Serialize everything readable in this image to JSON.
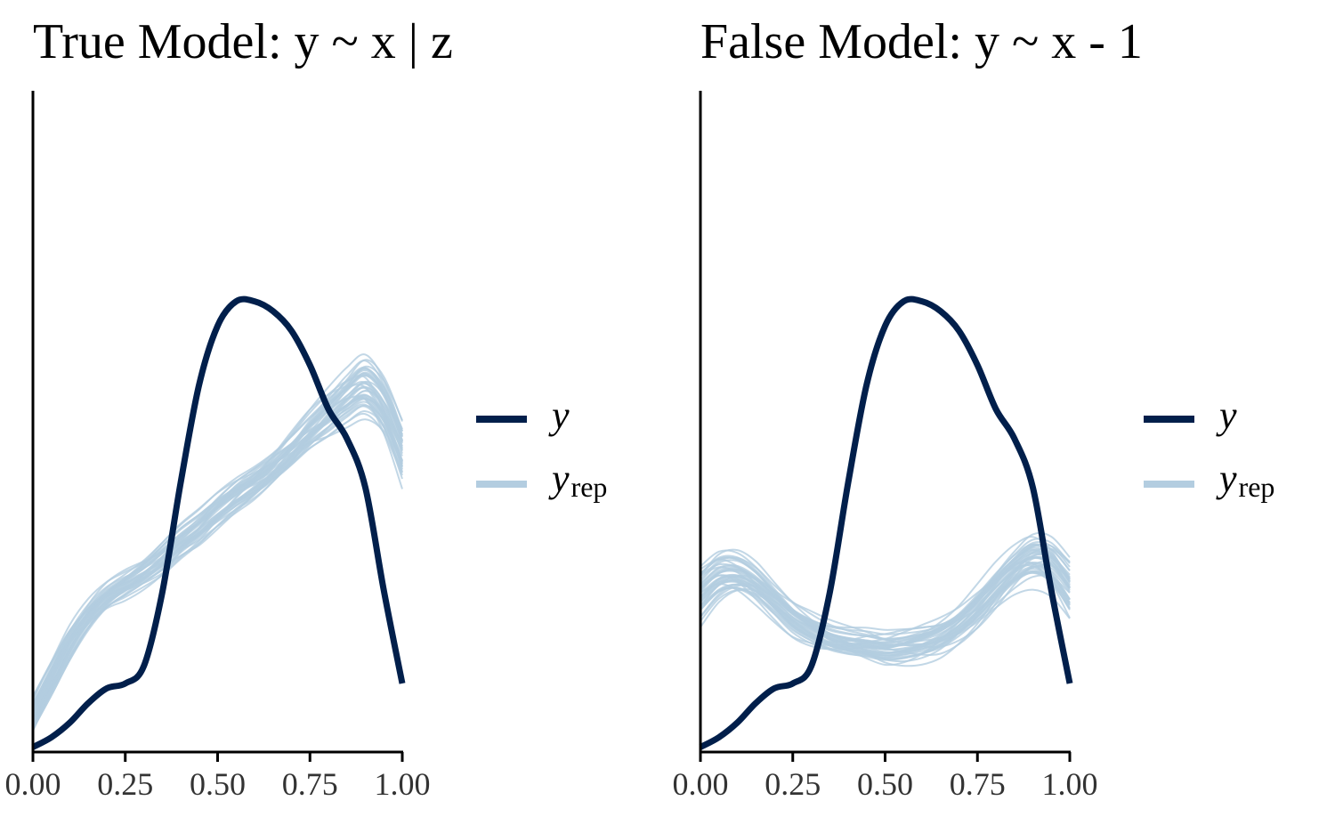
{
  "colors": {
    "y": "#011f4b",
    "yrep": "#b3cde0",
    "axis": "#000000",
    "tick_text": "#333333"
  },
  "legend": {
    "y_label": "y",
    "yrep_base": "y",
    "yrep_sub": "rep"
  },
  "chart_data": [
    {
      "type": "line",
      "title": "True Model: y ~ x | z",
      "xlabel": "",
      "ylabel": "",
      "xlim": [
        0,
        1
      ],
      "ylim": [
        0,
        2.7
      ],
      "x_ticks": [
        "0.00",
        "0.25",
        "0.50",
        "0.75",
        "1.00"
      ],
      "y_axis_ticks_shown": false,
      "grid": false,
      "legend_position": "right",
      "legend": [
        "y",
        "y_rep"
      ],
      "x": [
        0,
        0.05,
        0.1,
        0.15,
        0.2,
        0.25,
        0.3,
        0.35,
        0.4,
        0.45,
        0.5,
        0.55,
        0.6,
        0.65,
        0.7,
        0.75,
        0.8,
        0.85,
        0.9,
        0.95,
        1.0
      ],
      "series": [
        {
          "name": "y",
          "values": [
            0.02,
            0.06,
            0.12,
            0.2,
            0.26,
            0.28,
            0.35,
            0.65,
            1.1,
            1.5,
            1.74,
            1.84,
            1.84,
            1.8,
            1.72,
            1.58,
            1.4,
            1.28,
            1.08,
            0.66,
            0.28
          ]
        }
      ],
      "replicate_series": {
        "name": "y_rep",
        "count": 40,
        "mean_values": [
          0.16,
          0.3,
          0.44,
          0.55,
          0.63,
          0.68,
          0.73,
          0.79,
          0.86,
          0.92,
          0.99,
          1.05,
          1.1,
          1.16,
          1.23,
          1.31,
          1.38,
          1.45,
          1.5,
          1.42,
          1.24
        ],
        "spread": [
          0.1,
          0.1,
          0.1,
          0.09,
          0.08,
          0.08,
          0.08,
          0.09,
          0.09,
          0.09,
          0.09,
          0.09,
          0.09,
          0.09,
          0.1,
          0.11,
          0.13,
          0.15,
          0.18,
          0.19,
          0.2
        ]
      }
    },
    {
      "type": "line",
      "title": "False Model: y ~ x - 1",
      "xlabel": "",
      "ylabel": "",
      "xlim": [
        0,
        1
      ],
      "ylim": [
        0,
        2.7
      ],
      "x_ticks": [
        "0.00",
        "0.25",
        "0.50",
        "0.75",
        "1.00"
      ],
      "y_axis_ticks_shown": false,
      "grid": false,
      "legend_position": "right",
      "legend": [
        "y",
        "y_rep"
      ],
      "x": [
        0,
        0.05,
        0.1,
        0.15,
        0.2,
        0.25,
        0.3,
        0.35,
        0.4,
        0.45,
        0.5,
        0.55,
        0.6,
        0.65,
        0.7,
        0.75,
        0.8,
        0.85,
        0.9,
        0.95,
        1.0
      ],
      "series": [
        {
          "name": "y",
          "values": [
            0.02,
            0.06,
            0.12,
            0.2,
            0.26,
            0.28,
            0.35,
            0.65,
            1.1,
            1.5,
            1.74,
            1.84,
            1.84,
            1.8,
            1.72,
            1.58,
            1.4,
            1.28,
            1.08,
            0.66,
            0.28
          ]
        }
      ],
      "replicate_series": {
        "name": "y_rep",
        "count": 40,
        "mean_values": [
          0.65,
          0.72,
          0.73,
          0.69,
          0.62,
          0.55,
          0.5,
          0.46,
          0.44,
          0.43,
          0.42,
          0.43,
          0.45,
          0.48,
          0.53,
          0.6,
          0.68,
          0.75,
          0.79,
          0.76,
          0.66
        ],
        "spread": [
          0.12,
          0.11,
          0.1,
          0.09,
          0.08,
          0.08,
          0.08,
          0.08,
          0.08,
          0.08,
          0.08,
          0.08,
          0.08,
          0.08,
          0.08,
          0.09,
          0.1,
          0.11,
          0.13,
          0.14,
          0.15
        ]
      }
    }
  ]
}
